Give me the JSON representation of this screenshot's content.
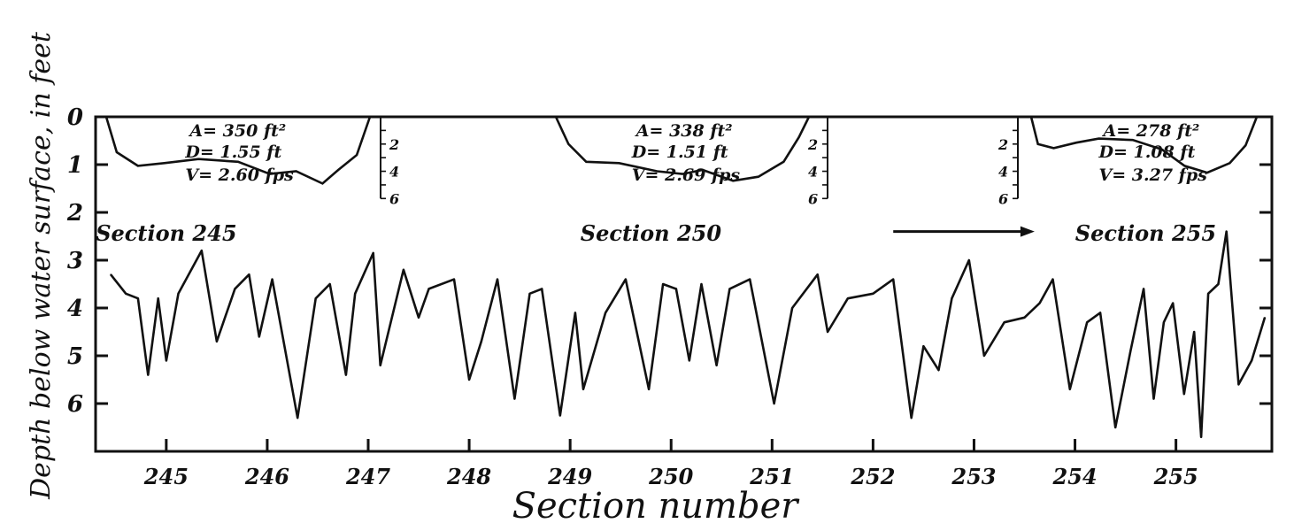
{
  "chart_data": {
    "type": "line",
    "xlabel": "Section number",
    "ylabel": "Depth below water surface, in feet",
    "xlim": [
      244.3,
      255.95
    ],
    "ylim": [
      0,
      7
    ],
    "y_inverted": true,
    "yticks": [
      "0",
      "1",
      "2",
      "3",
      "4",
      "5",
      "6"
    ],
    "xticks": [
      "245",
      "246",
      "247",
      "248",
      "249",
      "250",
      "251",
      "252",
      "253",
      "254",
      "255"
    ],
    "grid": false,
    "series": [
      {
        "points": [
          [
            244.45,
            3.3
          ],
          [
            244.6,
            3.7
          ],
          [
            244.72,
            3.8
          ],
          [
            244.82,
            5.4
          ],
          [
            244.92,
            3.8
          ],
          [
            245.0,
            5.1
          ],
          [
            245.12,
            3.7
          ],
          [
            245.35,
            2.8
          ],
          [
            245.5,
            4.7
          ],
          [
            245.68,
            3.6
          ],
          [
            245.82,
            3.3
          ],
          [
            245.92,
            4.6
          ],
          [
            246.05,
            3.4
          ],
          [
            246.3,
            6.3
          ],
          [
            246.48,
            3.8
          ],
          [
            246.62,
            3.5
          ],
          [
            246.78,
            5.4
          ],
          [
            246.87,
            3.7
          ],
          [
            247.05,
            2.85
          ],
          [
            247.12,
            5.2
          ],
          [
            247.35,
            3.2
          ],
          [
            247.5,
            4.2
          ],
          [
            247.6,
            3.6
          ],
          [
            247.85,
            3.4
          ],
          [
            248.0,
            5.5
          ],
          [
            248.12,
            4.7
          ],
          [
            248.28,
            3.4
          ],
          [
            248.45,
            5.9
          ],
          [
            248.6,
            3.7
          ],
          [
            248.72,
            3.6
          ],
          [
            248.9,
            6.25
          ],
          [
            249.05,
            4.1
          ],
          [
            249.13,
            5.7
          ],
          [
            249.35,
            4.1
          ],
          [
            249.55,
            3.4
          ],
          [
            249.78,
            5.7
          ],
          [
            249.92,
            3.5
          ],
          [
            250.05,
            3.6
          ],
          [
            250.18,
            5.1
          ],
          [
            250.3,
            3.5
          ],
          [
            250.45,
            5.2
          ],
          [
            250.58,
            3.6
          ],
          [
            250.78,
            3.4
          ],
          [
            251.02,
            6.0
          ],
          [
            251.2,
            4.0
          ],
          [
            251.45,
            3.3
          ],
          [
            251.55,
            4.5
          ],
          [
            251.75,
            3.8
          ],
          [
            252.0,
            3.7
          ],
          [
            252.2,
            3.4
          ],
          [
            252.38,
            6.3
          ],
          [
            252.5,
            4.8
          ],
          [
            252.65,
            5.3
          ],
          [
            252.78,
            3.8
          ],
          [
            252.95,
            3.0
          ],
          [
            253.1,
            5.0
          ],
          [
            253.3,
            4.3
          ],
          [
            253.5,
            4.2
          ],
          [
            253.65,
            3.9
          ],
          [
            253.78,
            3.4
          ],
          [
            253.95,
            5.7
          ],
          [
            254.12,
            4.3
          ],
          [
            254.25,
            4.1
          ],
          [
            254.4,
            6.5
          ],
          [
            254.55,
            4.9
          ],
          [
            254.68,
            3.6
          ],
          [
            254.78,
            5.9
          ],
          [
            254.88,
            4.3
          ],
          [
            254.97,
            3.9
          ],
          [
            255.08,
            5.8
          ],
          [
            255.18,
            4.5
          ],
          [
            255.25,
            6.7
          ],
          [
            255.32,
            3.7
          ],
          [
            255.42,
            3.5
          ],
          [
            255.5,
            2.4
          ],
          [
            255.62,
            5.6
          ],
          [
            255.75,
            5.1
          ],
          [
            255.88,
            4.2
          ]
        ]
      }
    ],
    "annotations": {
      "section_labels": [
        {
          "text": "Section 245",
          "x": 245.0
        },
        {
          "text": "Section 250",
          "x": 249.8
        },
        {
          "text": "Section 255",
          "x": 254.7
        }
      ],
      "flow_arrow": {
        "direction": "right",
        "x_from": 252.2,
        "x_to": 253.6,
        "y": 2.4
      }
    },
    "insets": [
      {
        "section": "245",
        "area": "A= 350 ft²",
        "mean_depth": "D= 1.55 ft",
        "velocity": "V= 2.60 fps",
        "depth_ticks": [
          "2",
          "4",
          "6"
        ],
        "profile": [
          [
            0,
            0
          ],
          [
            0.04,
            2.6
          ],
          [
            0.12,
            3.6
          ],
          [
            0.22,
            3.4
          ],
          [
            0.35,
            3.1
          ],
          [
            0.5,
            3.3
          ],
          [
            0.62,
            4.2
          ],
          [
            0.72,
            4.0
          ],
          [
            0.82,
            4.9
          ],
          [
            0.88,
            3.9
          ],
          [
            0.95,
            2.8
          ],
          [
            1.0,
            0
          ]
        ]
      },
      {
        "section": "250",
        "area": "A= 338 ft²",
        "mean_depth": "D= 1.51 ft",
        "velocity": "V= 2.69 fps",
        "depth_ticks": [
          "2",
          "4",
          "6"
        ],
        "profile": [
          [
            0,
            0
          ],
          [
            0.05,
            2.0
          ],
          [
            0.12,
            3.3
          ],
          [
            0.25,
            3.4
          ],
          [
            0.4,
            4.0
          ],
          [
            0.5,
            4.2
          ],
          [
            0.58,
            3.9
          ],
          [
            0.7,
            4.7
          ],
          [
            0.8,
            4.4
          ],
          [
            0.9,
            3.3
          ],
          [
            0.96,
            1.5
          ],
          [
            1.0,
            0
          ]
        ]
      },
      {
        "section": "255",
        "area": "A= 278 ft²",
        "mean_depth": "D= 1.08 ft",
        "velocity": "V= 3.27 fps",
        "depth_ticks": [
          "2",
          "4",
          "6"
        ],
        "profile": [
          [
            0,
            0
          ],
          [
            0.03,
            2.0
          ],
          [
            0.1,
            2.3
          ],
          [
            0.2,
            1.9
          ],
          [
            0.3,
            1.6
          ],
          [
            0.45,
            1.7
          ],
          [
            0.58,
            2.4
          ],
          [
            0.68,
            3.6
          ],
          [
            0.78,
            4.1
          ],
          [
            0.88,
            3.4
          ],
          [
            0.95,
            2.1
          ],
          [
            1.0,
            0
          ]
        ]
      }
    ]
  }
}
